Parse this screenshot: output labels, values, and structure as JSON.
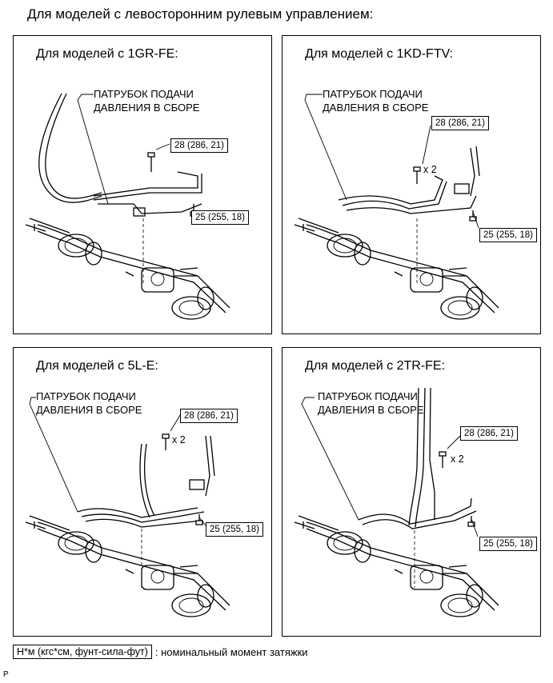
{
  "header": {
    "title": "Для моделей с левосторонним рулевым управлением:"
  },
  "panels": [
    {
      "title": "Для моделей с 1GR-FE:",
      "callout_line1": "ПАТРУБОК ПОДАЧИ",
      "callout_line2": "ДАВЛЕНИЯ В СБОРЕ",
      "torque_upper": "28 (286, 21)",
      "torque_lower": "25 (255, 18)",
      "multiplier": ""
    },
    {
      "title": "Для моделей с 1KD-FTV:",
      "callout_line1": "ПАТРУБОК ПОДАЧИ",
      "callout_line2": "ДАВЛЕНИЯ В СБОРЕ",
      "torque_upper": "28 (286, 21)",
      "torque_lower": "25 (255, 18)",
      "multiplier": "x 2"
    },
    {
      "title": "Для моделей с 5L-E:",
      "callout_line1": "ПАТРУБОК ПОДАЧИ",
      "callout_line2": "ДАВЛЕНИЯ В СБОРЕ",
      "torque_upper": "28 (286, 21)",
      "torque_lower": "25 (255, 18)",
      "multiplier": "x 2"
    },
    {
      "title": "Для моделей с 2TR-FE:",
      "callout_line1": "ПАТРУБОК ПОДАЧИ",
      "callout_line2": "ДАВЛЕНИЯ В СБОРЕ",
      "torque_upper": "28 (286, 21)",
      "torque_lower": "25 (255, 18)",
      "multiplier": "x 2"
    }
  ],
  "legend": {
    "unit": "Н*м (кгс*см, фунт-сила-фут)",
    "description": ": номинальный момент затяжки"
  },
  "footer": {
    "code": "P"
  }
}
